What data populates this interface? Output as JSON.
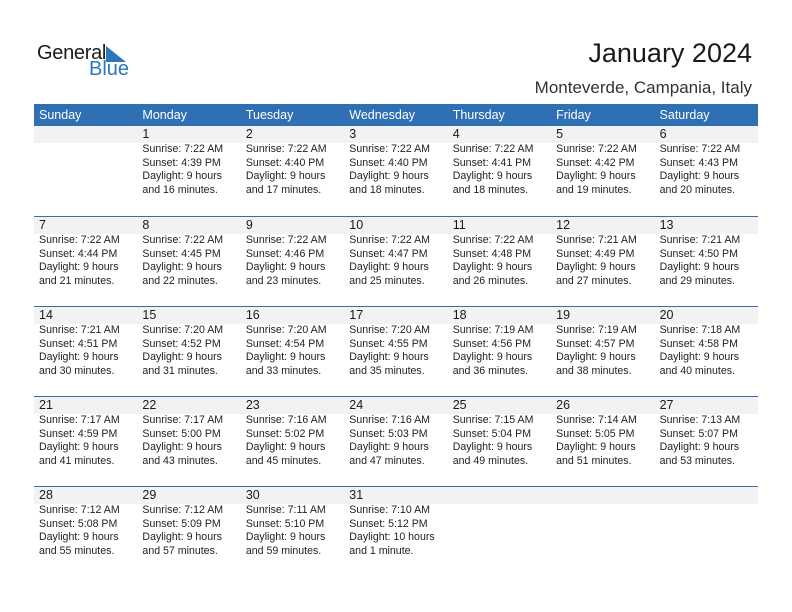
{
  "logo": {
    "text_general": "General",
    "text_blue": "Blue"
  },
  "title": "January 2024",
  "location": "Monteverde, Campania, Italy",
  "colors": {
    "header_bg": "#2f6fb3",
    "day_band": "#f2f2f2",
    "logo_blue": "#2a77c0"
  },
  "weekdays": [
    "Sunday",
    "Monday",
    "Tuesday",
    "Wednesday",
    "Thursday",
    "Friday",
    "Saturday"
  ],
  "weeks": [
    [
      null,
      {
        "day": "1",
        "sunrise": "Sunrise: 7:22 AM",
        "sunset": "Sunset: 4:39 PM",
        "daylight1": "Daylight: 9 hours",
        "daylight2": "and 16 minutes."
      },
      {
        "day": "2",
        "sunrise": "Sunrise: 7:22 AM",
        "sunset": "Sunset: 4:40 PM",
        "daylight1": "Daylight: 9 hours",
        "daylight2": "and 17 minutes."
      },
      {
        "day": "3",
        "sunrise": "Sunrise: 7:22 AM",
        "sunset": "Sunset: 4:40 PM",
        "daylight1": "Daylight: 9 hours",
        "daylight2": "and 18 minutes."
      },
      {
        "day": "4",
        "sunrise": "Sunrise: 7:22 AM",
        "sunset": "Sunset: 4:41 PM",
        "daylight1": "Daylight: 9 hours",
        "daylight2": "and 18 minutes."
      },
      {
        "day": "5",
        "sunrise": "Sunrise: 7:22 AM",
        "sunset": "Sunset: 4:42 PM",
        "daylight1": "Daylight: 9 hours",
        "daylight2": "and 19 minutes."
      },
      {
        "day": "6",
        "sunrise": "Sunrise: 7:22 AM",
        "sunset": "Sunset: 4:43 PM",
        "daylight1": "Daylight: 9 hours",
        "daylight2": "and 20 minutes."
      }
    ],
    [
      {
        "day": "7",
        "sunrise": "Sunrise: 7:22 AM",
        "sunset": "Sunset: 4:44 PM",
        "daylight1": "Daylight: 9 hours",
        "daylight2": "and 21 minutes."
      },
      {
        "day": "8",
        "sunrise": "Sunrise: 7:22 AM",
        "sunset": "Sunset: 4:45 PM",
        "daylight1": "Daylight: 9 hours",
        "daylight2": "and 22 minutes."
      },
      {
        "day": "9",
        "sunrise": "Sunrise: 7:22 AM",
        "sunset": "Sunset: 4:46 PM",
        "daylight1": "Daylight: 9 hours",
        "daylight2": "and 23 minutes."
      },
      {
        "day": "10",
        "sunrise": "Sunrise: 7:22 AM",
        "sunset": "Sunset: 4:47 PM",
        "daylight1": "Daylight: 9 hours",
        "daylight2": "and 25 minutes."
      },
      {
        "day": "11",
        "sunrise": "Sunrise: 7:22 AM",
        "sunset": "Sunset: 4:48 PM",
        "daylight1": "Daylight: 9 hours",
        "daylight2": "and 26 minutes."
      },
      {
        "day": "12",
        "sunrise": "Sunrise: 7:21 AM",
        "sunset": "Sunset: 4:49 PM",
        "daylight1": "Daylight: 9 hours",
        "daylight2": "and 27 minutes."
      },
      {
        "day": "13",
        "sunrise": "Sunrise: 7:21 AM",
        "sunset": "Sunset: 4:50 PM",
        "daylight1": "Daylight: 9 hours",
        "daylight2": "and 29 minutes."
      }
    ],
    [
      {
        "day": "14",
        "sunrise": "Sunrise: 7:21 AM",
        "sunset": "Sunset: 4:51 PM",
        "daylight1": "Daylight: 9 hours",
        "daylight2": "and 30 minutes."
      },
      {
        "day": "15",
        "sunrise": "Sunrise: 7:20 AM",
        "sunset": "Sunset: 4:52 PM",
        "daylight1": "Daylight: 9 hours",
        "daylight2": "and 31 minutes."
      },
      {
        "day": "16",
        "sunrise": "Sunrise: 7:20 AM",
        "sunset": "Sunset: 4:54 PM",
        "daylight1": "Daylight: 9 hours",
        "daylight2": "and 33 minutes."
      },
      {
        "day": "17",
        "sunrise": "Sunrise: 7:20 AM",
        "sunset": "Sunset: 4:55 PM",
        "daylight1": "Daylight: 9 hours",
        "daylight2": "and 35 minutes."
      },
      {
        "day": "18",
        "sunrise": "Sunrise: 7:19 AM",
        "sunset": "Sunset: 4:56 PM",
        "daylight1": "Daylight: 9 hours",
        "daylight2": "and 36 minutes."
      },
      {
        "day": "19",
        "sunrise": "Sunrise: 7:19 AM",
        "sunset": "Sunset: 4:57 PM",
        "daylight1": "Daylight: 9 hours",
        "daylight2": "and 38 minutes."
      },
      {
        "day": "20",
        "sunrise": "Sunrise: 7:18 AM",
        "sunset": "Sunset: 4:58 PM",
        "daylight1": "Daylight: 9 hours",
        "daylight2": "and 40 minutes."
      }
    ],
    [
      {
        "day": "21",
        "sunrise": "Sunrise: 7:17 AM",
        "sunset": "Sunset: 4:59 PM",
        "daylight1": "Daylight: 9 hours",
        "daylight2": "and 41 minutes."
      },
      {
        "day": "22",
        "sunrise": "Sunrise: 7:17 AM",
        "sunset": "Sunset: 5:00 PM",
        "daylight1": "Daylight: 9 hours",
        "daylight2": "and 43 minutes."
      },
      {
        "day": "23",
        "sunrise": "Sunrise: 7:16 AM",
        "sunset": "Sunset: 5:02 PM",
        "daylight1": "Daylight: 9 hours",
        "daylight2": "and 45 minutes."
      },
      {
        "day": "24",
        "sunrise": "Sunrise: 7:16 AM",
        "sunset": "Sunset: 5:03 PM",
        "daylight1": "Daylight: 9 hours",
        "daylight2": "and 47 minutes."
      },
      {
        "day": "25",
        "sunrise": "Sunrise: 7:15 AM",
        "sunset": "Sunset: 5:04 PM",
        "daylight1": "Daylight: 9 hours",
        "daylight2": "and 49 minutes."
      },
      {
        "day": "26",
        "sunrise": "Sunrise: 7:14 AM",
        "sunset": "Sunset: 5:05 PM",
        "daylight1": "Daylight: 9 hours",
        "daylight2": "and 51 minutes."
      },
      {
        "day": "27",
        "sunrise": "Sunrise: 7:13 AM",
        "sunset": "Sunset: 5:07 PM",
        "daylight1": "Daylight: 9 hours",
        "daylight2": "and 53 minutes."
      }
    ],
    [
      {
        "day": "28",
        "sunrise": "Sunrise: 7:12 AM",
        "sunset": "Sunset: 5:08 PM",
        "daylight1": "Daylight: 9 hours",
        "daylight2": "and 55 minutes."
      },
      {
        "day": "29",
        "sunrise": "Sunrise: 7:12 AM",
        "sunset": "Sunset: 5:09 PM",
        "daylight1": "Daylight: 9 hours",
        "daylight2": "and 57 minutes."
      },
      {
        "day": "30",
        "sunrise": "Sunrise: 7:11 AM",
        "sunset": "Sunset: 5:10 PM",
        "daylight1": "Daylight: 9 hours",
        "daylight2": "and 59 minutes."
      },
      {
        "day": "31",
        "sunrise": "Sunrise: 7:10 AM",
        "sunset": "Sunset: 5:12 PM",
        "daylight1": "Daylight: 10 hours",
        "daylight2": "and 1 minute."
      },
      null,
      null,
      null
    ]
  ]
}
